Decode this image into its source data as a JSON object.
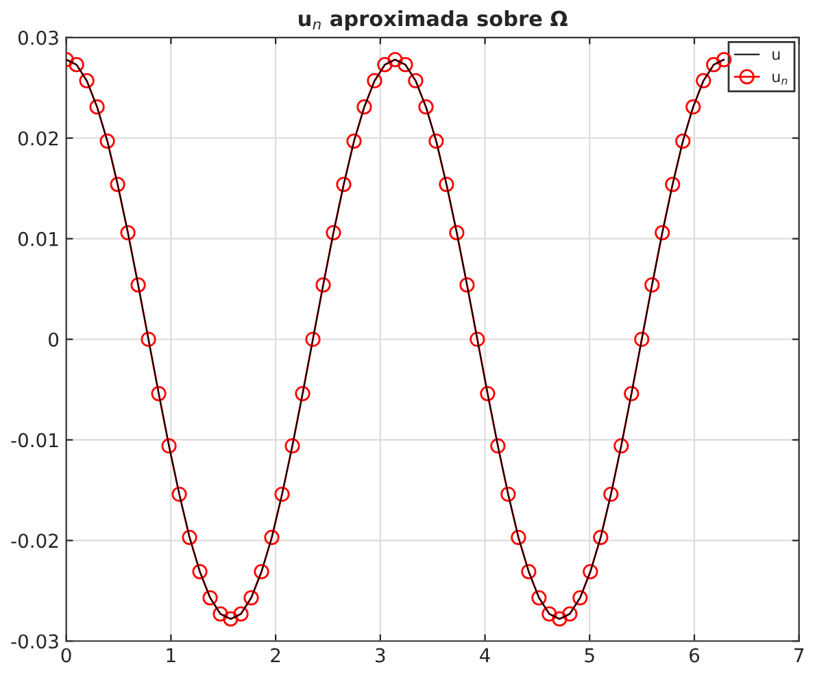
{
  "chart_data": {
    "type": "line",
    "title": "u$_{n}$ aproximada sobre Ω",
    "x": [
      0,
      0.0982,
      0.1963,
      0.2945,
      0.3927,
      0.4909,
      0.589,
      0.6872,
      0.7854,
      0.8836,
      0.9817,
      1.0799,
      1.1781,
      1.2763,
      1.3744,
      1.4726,
      1.5708,
      1.669,
      1.7671,
      1.8653,
      1.9635,
      2.0617,
      2.1598,
      2.258,
      2.3562,
      2.4544,
      2.5525,
      2.6507,
      2.7489,
      2.8471,
      2.9452,
      3.0434,
      3.1416,
      3.2398,
      3.3379,
      3.4361,
      3.5343,
      3.6325,
      3.7306,
      3.8288,
      3.927,
      4.0252,
      4.1233,
      4.2215,
      4.3197,
      4.4179,
      4.516,
      4.6142,
      4.7124,
      4.8106,
      4.9087,
      5.0069,
      5.1051,
      5.2033,
      5.3014,
      5.3996,
      5.4978,
      5.596,
      5.6941,
      5.7923,
      5.8905,
      5.9887,
      6.0868,
      6.185,
      6.2832
    ],
    "series": [
      {
        "name": "u",
        "color": "#000000",
        "marker": "none",
        "values": [
          0.0278,
          0.0273,
          0.0257,
          0.0231,
          0.0197,
          0.0154,
          0.0106,
          0.0054,
          0,
          -0.0054,
          -0.0106,
          -0.0154,
          -0.0197,
          -0.0231,
          -0.0257,
          -0.0273,
          -0.0278,
          -0.0273,
          -0.0257,
          -0.0231,
          -0.0197,
          -0.0154,
          -0.0106,
          -0.0054,
          0,
          0.0054,
          0.0106,
          0.0154,
          0.0197,
          0.0231,
          0.0257,
          0.0273,
          0.0278,
          0.0273,
          0.0257,
          0.0231,
          0.0197,
          0.0154,
          0.0106,
          0.0054,
          0,
          -0.0054,
          -0.0106,
          -0.0154,
          -0.0197,
          -0.0231,
          -0.0257,
          -0.0273,
          -0.0278,
          -0.0273,
          -0.0257,
          -0.0231,
          -0.0197,
          -0.0154,
          -0.0106,
          -0.0054,
          0,
          0.0054,
          0.0106,
          0.0154,
          0.0197,
          0.0231,
          0.0257,
          0.0273,
          0.0278
        ]
      },
      {
        "name": "u$_{n}$",
        "color": "#ff0000",
        "marker": "circle",
        "values": [
          0.0278,
          0.0273,
          0.0257,
          0.0231,
          0.0197,
          0.0154,
          0.0106,
          0.0054,
          0,
          -0.0054,
          -0.0106,
          -0.0154,
          -0.0197,
          -0.0231,
          -0.0257,
          -0.0273,
          -0.0278,
          -0.0273,
          -0.0257,
          -0.0231,
          -0.0197,
          -0.0154,
          -0.0106,
          -0.0054,
          0,
          0.0054,
          0.0106,
          0.0154,
          0.0197,
          0.0231,
          0.0257,
          0.0273,
          0.0278,
          0.0273,
          0.0257,
          0.0231,
          0.0197,
          0.0154,
          0.0106,
          0.0054,
          0,
          -0.0054,
          -0.0106,
          -0.0154,
          -0.0197,
          -0.0231,
          -0.0257,
          -0.0273,
          -0.0278,
          -0.0273,
          -0.0257,
          -0.0231,
          -0.0197,
          -0.0154,
          -0.0106,
          -0.0054,
          0,
          0.0054,
          0.0106,
          0.0154,
          0.0197,
          0.0231,
          0.0257,
          0.0273,
          0.0278
        ]
      }
    ],
    "xlim": [
      0,
      7
    ],
    "xticks": [
      0,
      1,
      2,
      3,
      4,
      5,
      6,
      7
    ],
    "ylim": [
      -0.03,
      0.03
    ],
    "yticks": [
      -0.03,
      -0.02,
      -0.01,
      0,
      0.01,
      0.02,
      0.03
    ],
    "grid": true,
    "legend": "top right",
    "line_style": "solid"
  }
}
